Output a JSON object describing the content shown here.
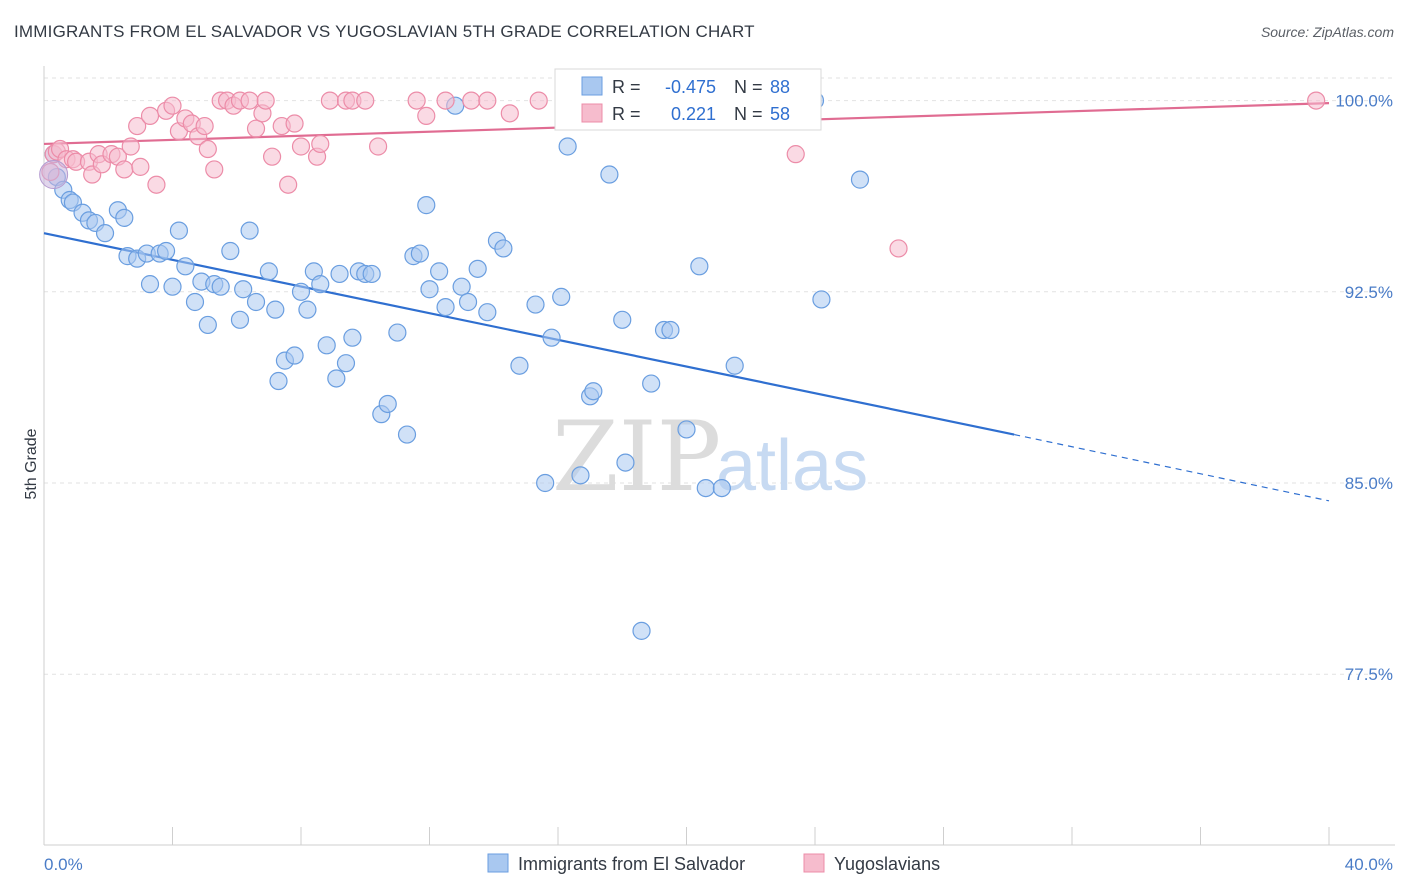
{
  "title": "IMMIGRANTS FROM EL SALVADOR VS YUGOSLAVIAN 5TH GRADE CORRELATION CHART",
  "source": "Source: ZipAtlas.com",
  "watermark": {
    "zip": "ZIP",
    "atlas": "atlas"
  },
  "chart_data": {
    "type": "scatter",
    "xlabel": "",
    "ylabel": "5th Grade",
    "xlim": [
      0,
      40
    ],
    "ylim": [
      70.8,
      101.2
    ],
    "x_tick_labels": [
      {
        "v": 0,
        "label": "0.0%"
      },
      {
        "v": 40,
        "label": "40.0%"
      }
    ],
    "y_tick_labels": [
      {
        "v": 100,
        "label": "100.0%"
      },
      {
        "v": 92.5,
        "label": "92.5%"
      },
      {
        "v": 85,
        "label": "85.0%"
      },
      {
        "v": 77.5,
        "label": "77.5%"
      }
    ],
    "grid": true,
    "legend": {
      "position": "top-center",
      "rows": [
        {
          "r_label": "R =",
          "r": "-0.475",
          "n_label": "N =",
          "n": "88"
        },
        {
          "r_label": "R =",
          "r": "0.221",
          "n_label": "N =",
          "n": "58"
        }
      ]
    },
    "series": [
      {
        "name": "Immigrants from El Salvador",
        "color": "#a9c8f0",
        "stroke": "#6a9ee0",
        "line_color": "#2f6fd0",
        "trend": {
          "x0": 0,
          "y0": 94.8,
          "x1": 30.2,
          "y1": 86.9,
          "dash_to_x": 40,
          "dash_to_y": 84.3
        },
        "points": [
          [
            0.3,
            97.9
          ],
          [
            0.4,
            97.0
          ],
          [
            0.6,
            96.5
          ],
          [
            0.8,
            96.1
          ],
          [
            0.9,
            96.0
          ],
          [
            1.2,
            95.6
          ],
          [
            1.4,
            95.3
          ],
          [
            1.6,
            95.2
          ],
          [
            1.9,
            94.8
          ],
          [
            2.3,
            95.7
          ],
          [
            2.5,
            95.4
          ],
          [
            2.6,
            93.9
          ],
          [
            2.9,
            93.8
          ],
          [
            3.2,
            94.0
          ],
          [
            3.3,
            92.8
          ],
          [
            3.6,
            94.0
          ],
          [
            3.8,
            94.1
          ],
          [
            4.0,
            92.7
          ],
          [
            4.2,
            94.9
          ],
          [
            4.4,
            93.5
          ],
          [
            4.7,
            92.1
          ],
          [
            4.9,
            92.9
          ],
          [
            5.1,
            91.2
          ],
          [
            5.3,
            92.8
          ],
          [
            5.5,
            92.7
          ],
          [
            5.8,
            94.1
          ],
          [
            6.1,
            91.4
          ],
          [
            6.2,
            92.6
          ],
          [
            6.4,
            94.9
          ],
          [
            6.6,
            92.1
          ],
          [
            7.0,
            93.3
          ],
          [
            7.2,
            91.8
          ],
          [
            7.3,
            89.0
          ],
          [
            7.5,
            89.8
          ],
          [
            7.8,
            90.0
          ],
          [
            8.0,
            92.5
          ],
          [
            8.2,
            91.8
          ],
          [
            8.4,
            93.3
          ],
          [
            8.6,
            92.8
          ],
          [
            8.8,
            90.4
          ],
          [
            9.1,
            89.1
          ],
          [
            9.2,
            93.2
          ],
          [
            9.4,
            89.7
          ],
          [
            9.6,
            90.7
          ],
          [
            9.8,
            93.3
          ],
          [
            10.0,
            93.2
          ],
          [
            10.2,
            93.2
          ],
          [
            10.5,
            87.7
          ],
          [
            10.7,
            88.1
          ],
          [
            11.0,
            90.9
          ],
          [
            11.3,
            86.9
          ],
          [
            11.5,
            93.9
          ],
          [
            11.7,
            94.0
          ],
          [
            11.9,
            95.9
          ],
          [
            12.0,
            92.6
          ],
          [
            12.3,
            93.3
          ],
          [
            12.5,
            91.9
          ],
          [
            12.8,
            99.8
          ],
          [
            13.0,
            92.7
          ],
          [
            13.2,
            92.1
          ],
          [
            13.5,
            93.4
          ],
          [
            13.8,
            91.7
          ],
          [
            14.1,
            94.5
          ],
          [
            14.3,
            94.2
          ],
          [
            14.8,
            89.6
          ],
          [
            15.3,
            92.0
          ],
          [
            15.6,
            85.0
          ],
          [
            15.8,
            90.7
          ],
          [
            16.1,
            92.3
          ],
          [
            16.3,
            98.2
          ],
          [
            16.7,
            85.3
          ],
          [
            17.0,
            88.4
          ],
          [
            17.1,
            88.6
          ],
          [
            17.6,
            97.1
          ],
          [
            18.0,
            91.4
          ],
          [
            18.1,
            85.8
          ],
          [
            18.6,
            79.2
          ],
          [
            18.9,
            88.9
          ],
          [
            19.3,
            91.0
          ],
          [
            19.5,
            91.0
          ],
          [
            20.0,
            87.1
          ],
          [
            20.4,
            93.5
          ],
          [
            20.6,
            84.8
          ],
          [
            21.1,
            84.8
          ],
          [
            21.5,
            89.6
          ],
          [
            24.0,
            100.0
          ],
          [
            24.2,
            92.2
          ],
          [
            25.4,
            96.9
          ]
        ]
      },
      {
        "name": "Yugoslavians",
        "color": "#f6bccd",
        "stroke": "#ec8ca8",
        "line_color": "#e06c92",
        "trend": {
          "x0": 0,
          "y0": 98.3,
          "x1": 40,
          "y1": 99.9
        },
        "points": [
          [
            0.2,
            97.2
          ],
          [
            0.3,
            97.9
          ],
          [
            0.4,
            98.0
          ],
          [
            0.5,
            98.1
          ],
          [
            0.7,
            97.7
          ],
          [
            0.9,
            97.7
          ],
          [
            1.0,
            97.6
          ],
          [
            1.4,
            97.6
          ],
          [
            1.5,
            97.1
          ],
          [
            1.7,
            97.9
          ],
          [
            1.8,
            97.5
          ],
          [
            2.1,
            97.9
          ],
          [
            2.3,
            97.8
          ],
          [
            2.5,
            97.3
          ],
          [
            2.7,
            98.2
          ],
          [
            2.9,
            99.0
          ],
          [
            3.0,
            97.4
          ],
          [
            3.3,
            99.4
          ],
          [
            3.5,
            96.7
          ],
          [
            3.8,
            99.6
          ],
          [
            4.0,
            99.8
          ],
          [
            4.2,
            98.8
          ],
          [
            4.4,
            99.3
          ],
          [
            4.6,
            99.1
          ],
          [
            4.8,
            98.6
          ],
          [
            5.0,
            99.0
          ],
          [
            5.1,
            98.1
          ],
          [
            5.3,
            97.3
          ],
          [
            5.5,
            100.0
          ],
          [
            5.7,
            100.0
          ],
          [
            5.9,
            99.8
          ],
          [
            6.1,
            100.0
          ],
          [
            6.4,
            100.0
          ],
          [
            6.6,
            98.9
          ],
          [
            6.8,
            99.5
          ],
          [
            6.9,
            100.0
          ],
          [
            7.1,
            97.8
          ],
          [
            7.4,
            99.0
          ],
          [
            7.6,
            96.7
          ],
          [
            7.8,
            99.1
          ],
          [
            8.0,
            98.2
          ],
          [
            8.5,
            97.8
          ],
          [
            8.6,
            98.3
          ],
          [
            8.9,
            100.0
          ],
          [
            9.4,
            100.0
          ],
          [
            9.6,
            100.0
          ],
          [
            10.0,
            100.0
          ],
          [
            10.4,
            98.2
          ],
          [
            11.6,
            100.0
          ],
          [
            11.9,
            99.4
          ],
          [
            12.5,
            100.0
          ],
          [
            13.3,
            100.0
          ],
          [
            13.8,
            100.0
          ],
          [
            14.5,
            99.5
          ],
          [
            15.4,
            100.0
          ],
          [
            23.4,
            97.9
          ],
          [
            26.6,
            94.2
          ],
          [
            39.6,
            100.0
          ]
        ]
      }
    ]
  }
}
